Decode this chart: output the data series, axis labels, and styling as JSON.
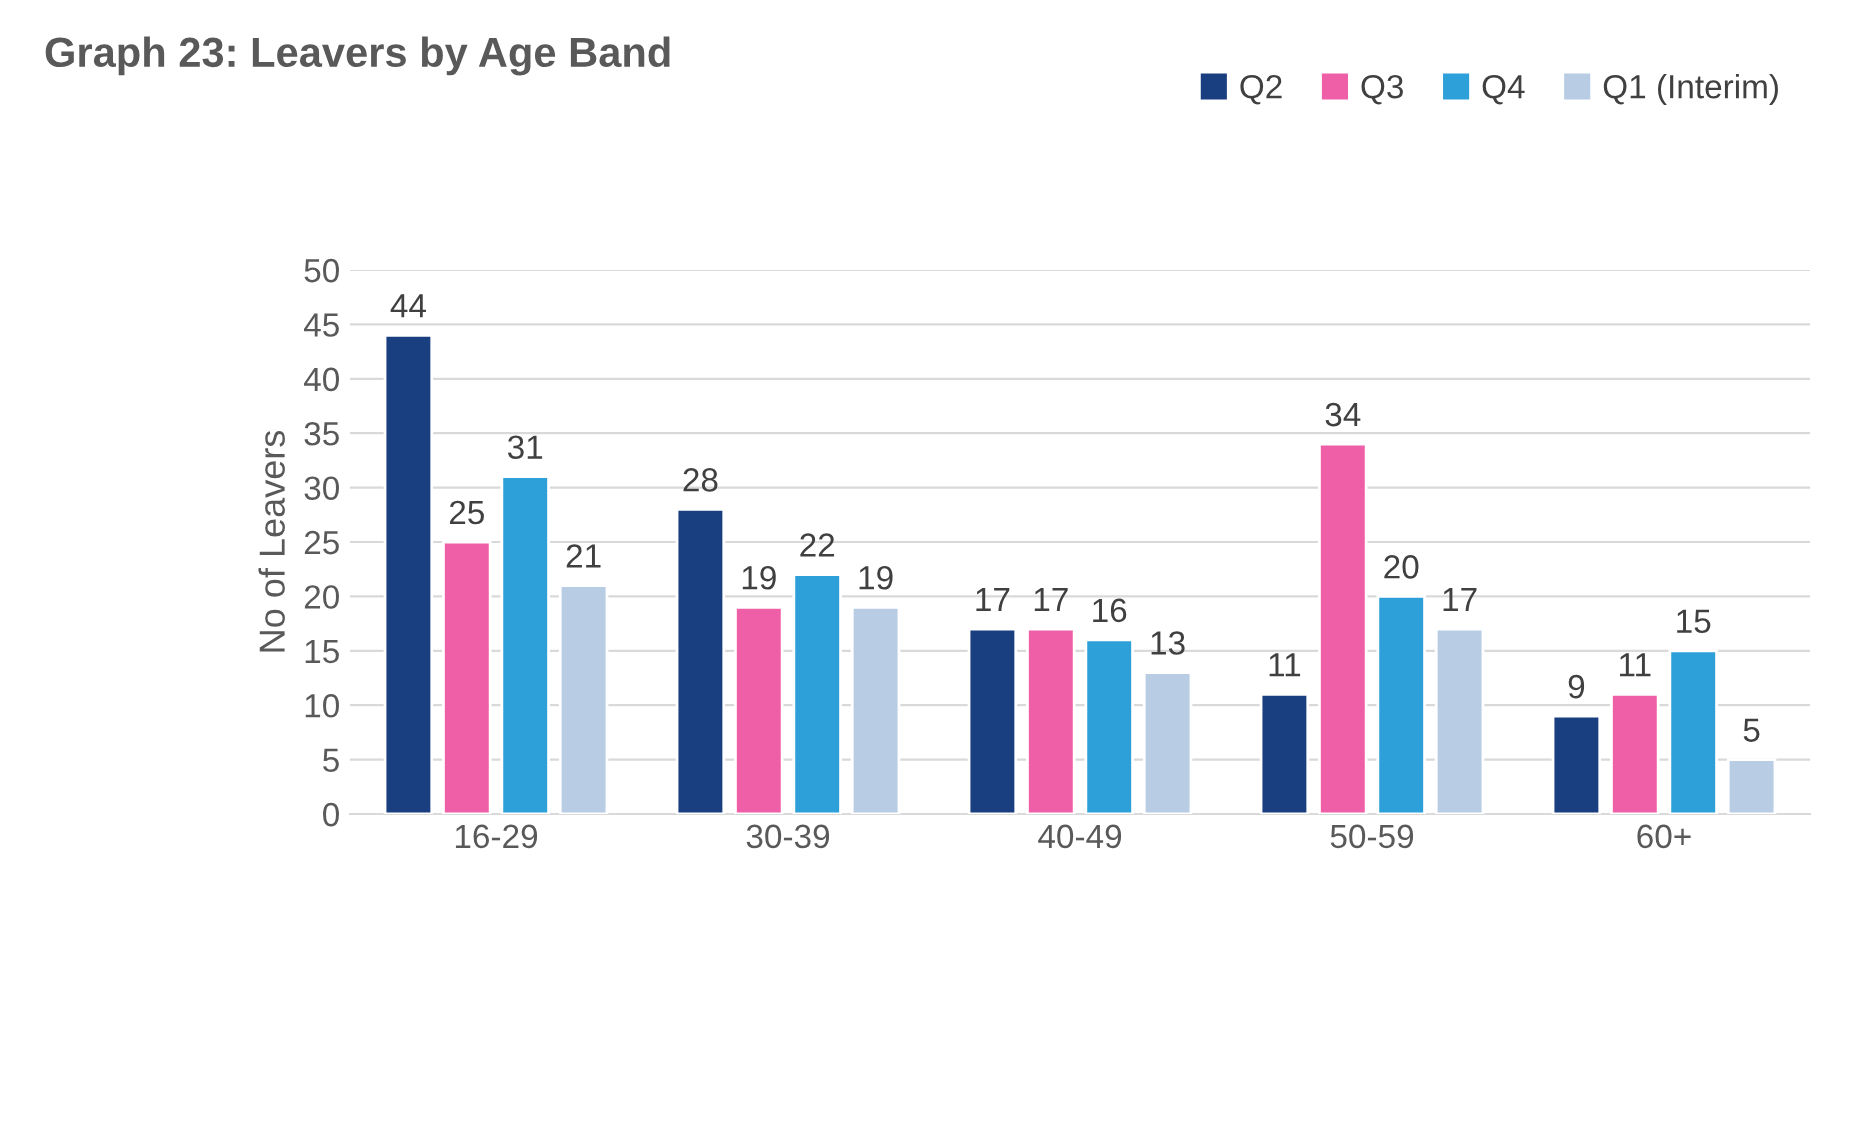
{
  "chart_data": {
    "type": "bar",
    "title": "Graph 23: Leavers by Age Band",
    "ylabel": "No of Leavers",
    "categories": [
      "16-29",
      "30-39",
      "40-49",
      "50-59",
      "60+"
    ],
    "series": [
      {
        "name": "Q2",
        "color": "#1a3f80",
        "values": [
          44,
          28,
          17,
          11,
          9
        ]
      },
      {
        "name": "Q3",
        "color": "#ef5fa7",
        "values": [
          25,
          19,
          17,
          34,
          11
        ]
      },
      {
        "name": "Q4",
        "color": "#2ea0d9",
        "values": [
          31,
          22,
          16,
          20,
          15
        ]
      },
      {
        "name": "Q1 (Interim)",
        "color": "#b8cce4",
        "values": [
          21,
          19,
          13,
          17,
          5
        ]
      }
    ],
    "ylim": [
      0,
      50
    ],
    "yticks": [
      0,
      5,
      10,
      15,
      20,
      25,
      30,
      35,
      40,
      45,
      50
    ],
    "grid": "y",
    "legend": "top right",
    "data_labels": true
  }
}
